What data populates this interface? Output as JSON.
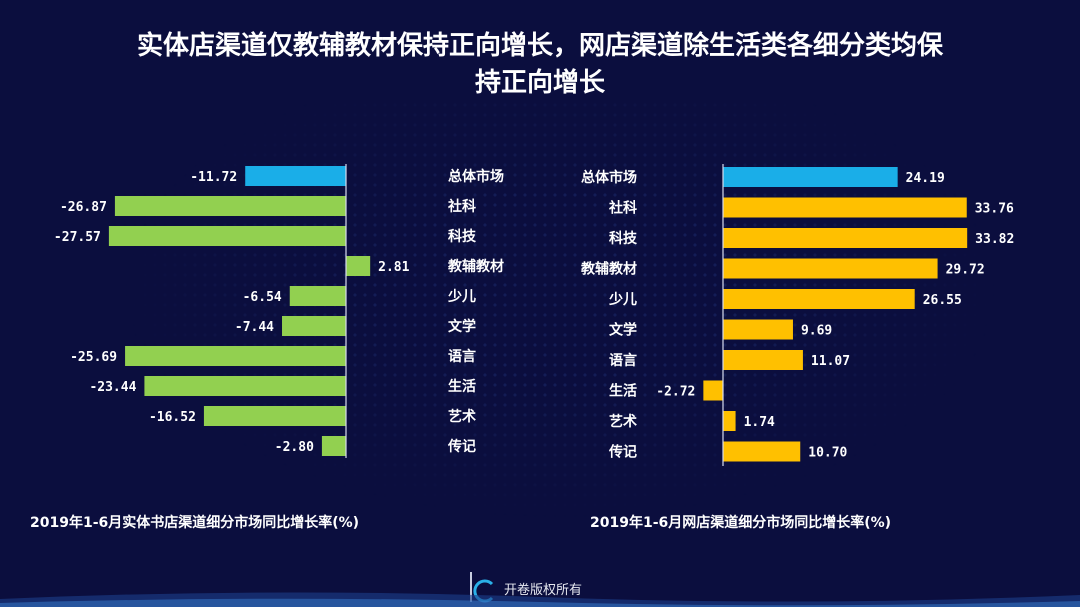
{
  "title": "实体店渠道仅教辅教材保持正向增长，网店渠道除生活类各细分类均保持正向增长",
  "title_lines": [
    "实体店渠道仅教辅教材保持正向增长，网店渠道除生活类各细分类均保",
    "持正向增长"
  ],
  "footer": {
    "text": "开卷版权所有"
  },
  "colors": {
    "background": "#0b0e3e",
    "total": "#1aaee8",
    "left_bar": "#92d050",
    "right_bar": "#ffc000"
  },
  "chart_data": [
    {
      "type": "bar",
      "orientation": "horizontal",
      "title": "2019年1-6月实体书店渠道细分市场同比增长率(%)",
      "categories": [
        "总体市场",
        "社科",
        "科技",
        "教辅教材",
        "少儿",
        "文学",
        "语言",
        "生活",
        "艺术",
        "传记"
      ],
      "values": [
        -11.72,
        -26.87,
        -27.57,
        2.81,
        -6.54,
        -7.44,
        -25.69,
        -23.44,
        -16.52,
        -2.8
      ],
      "labels": [
        "-11.72",
        "-26.87",
        "-27.57",
        "2.81",
        "-6.54",
        "-7.44",
        "-25.69",
        "-23.44",
        "-16.52",
        "-2.80"
      ],
      "xlabel": "",
      "ylabel": "",
      "xlim": [
        -28,
        3
      ],
      "grid": false
    },
    {
      "type": "bar",
      "orientation": "horizontal",
      "title": "2019年1-6月网店渠道细分市场同比增长率(%)",
      "categories": [
        "总体市场",
        "社科",
        "科技",
        "教辅教材",
        "少儿",
        "文学",
        "语言",
        "生活",
        "艺术",
        "传记"
      ],
      "values": [
        24.19,
        33.76,
        33.82,
        29.72,
        26.55,
        9.69,
        11.07,
        -2.72,
        1.74,
        10.7
      ],
      "labels": [
        "24.19",
        "33.76",
        "33.82",
        "29.72",
        "26.55",
        "9.69",
        "11.07",
        "-2.72",
        "1.74",
        "10.70"
      ],
      "xlabel": "",
      "ylabel": "",
      "xlim": [
        -3,
        34
      ],
      "grid": false
    }
  ]
}
